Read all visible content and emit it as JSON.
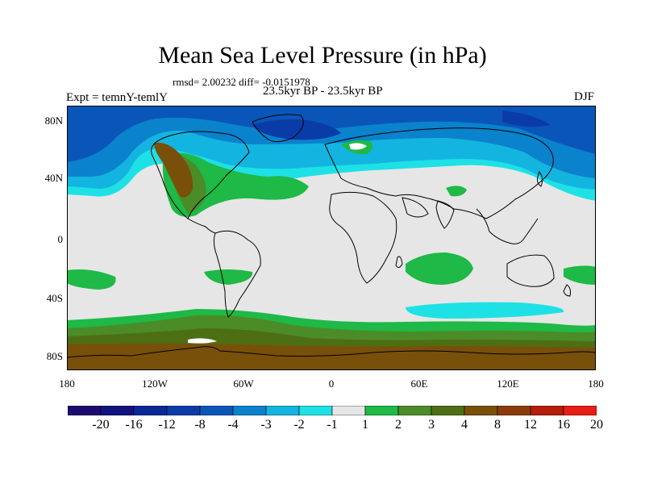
{
  "header": {
    "title": "Mean Sea Level Pressure (in hPa)",
    "stats": "rmsd= 2.00232 diff= -0.0151978",
    "period": "23.5kyr BP - 23.5kyr BP",
    "experiment": "Expt = temnY-temlY",
    "season": "DJF"
  },
  "axes": {
    "lat_ticks": [
      "80N",
      "40N",
      "0",
      "40S",
      "80S"
    ],
    "lon_ticks": [
      "180",
      "120W",
      "60W",
      "0",
      "60E",
      "120E",
      "180"
    ]
  },
  "colorbar": {
    "labels": [
      "-20",
      "-16",
      "-12",
      "-8",
      "-4",
      "-3",
      "-2",
      "-1",
      "1",
      "2",
      "3",
      "4",
      "8",
      "12",
      "16",
      "20"
    ],
    "colors": [
      "#1e0a6e",
      "#12137e",
      "#0a2896",
      "#0a3ca8",
      "#0a56b8",
      "#0a82cc",
      "#14b4e0",
      "#1ee1e6",
      "#e6e6e6",
      "#1eb946",
      "#4b8c28",
      "#4e6e14",
      "#78500a",
      "#8c3c0a",
      "#b41e0a",
      "#e61e14"
    ]
  },
  "map": {
    "projection": "cylindrical equidistant",
    "lon_range": [
      -180,
      180
    ],
    "lat_range": [
      -90,
      90
    ],
    "background_color": "#e6e6e6",
    "coastline_color": "#000000"
  }
}
